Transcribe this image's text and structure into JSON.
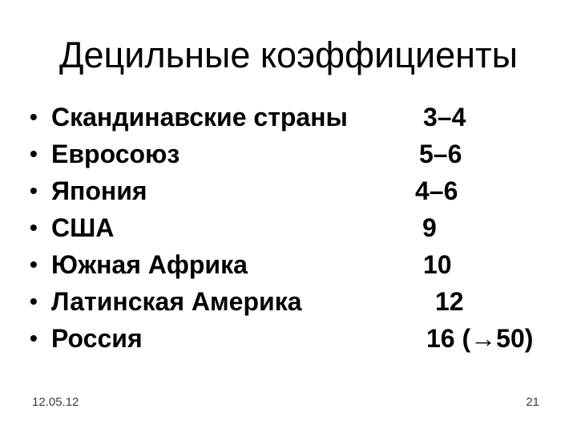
{
  "slide": {
    "title": "Децильные коэффициенты",
    "bullet_char": "•",
    "items": [
      {
        "label": "Скандинавские страны",
        "value": "3–4"
      },
      {
        "label": "Евросоюз",
        "value": "5–6"
      },
      {
        "label": "Япония",
        "value": "4–6"
      },
      {
        "label": "США",
        "value": "9"
      },
      {
        "label": "Южная Африка",
        "value": "10"
      },
      {
        "label": "Латинская Америка",
        "value": "12"
      },
      {
        "label": "Россия",
        "value": "16 (→50)"
      }
    ],
    "footer": {
      "date": "12.05.12",
      "page": "21"
    }
  },
  "colors": {
    "background": "#ffffff",
    "text": "#000000",
    "footer_text": "#3d3d3d"
  }
}
